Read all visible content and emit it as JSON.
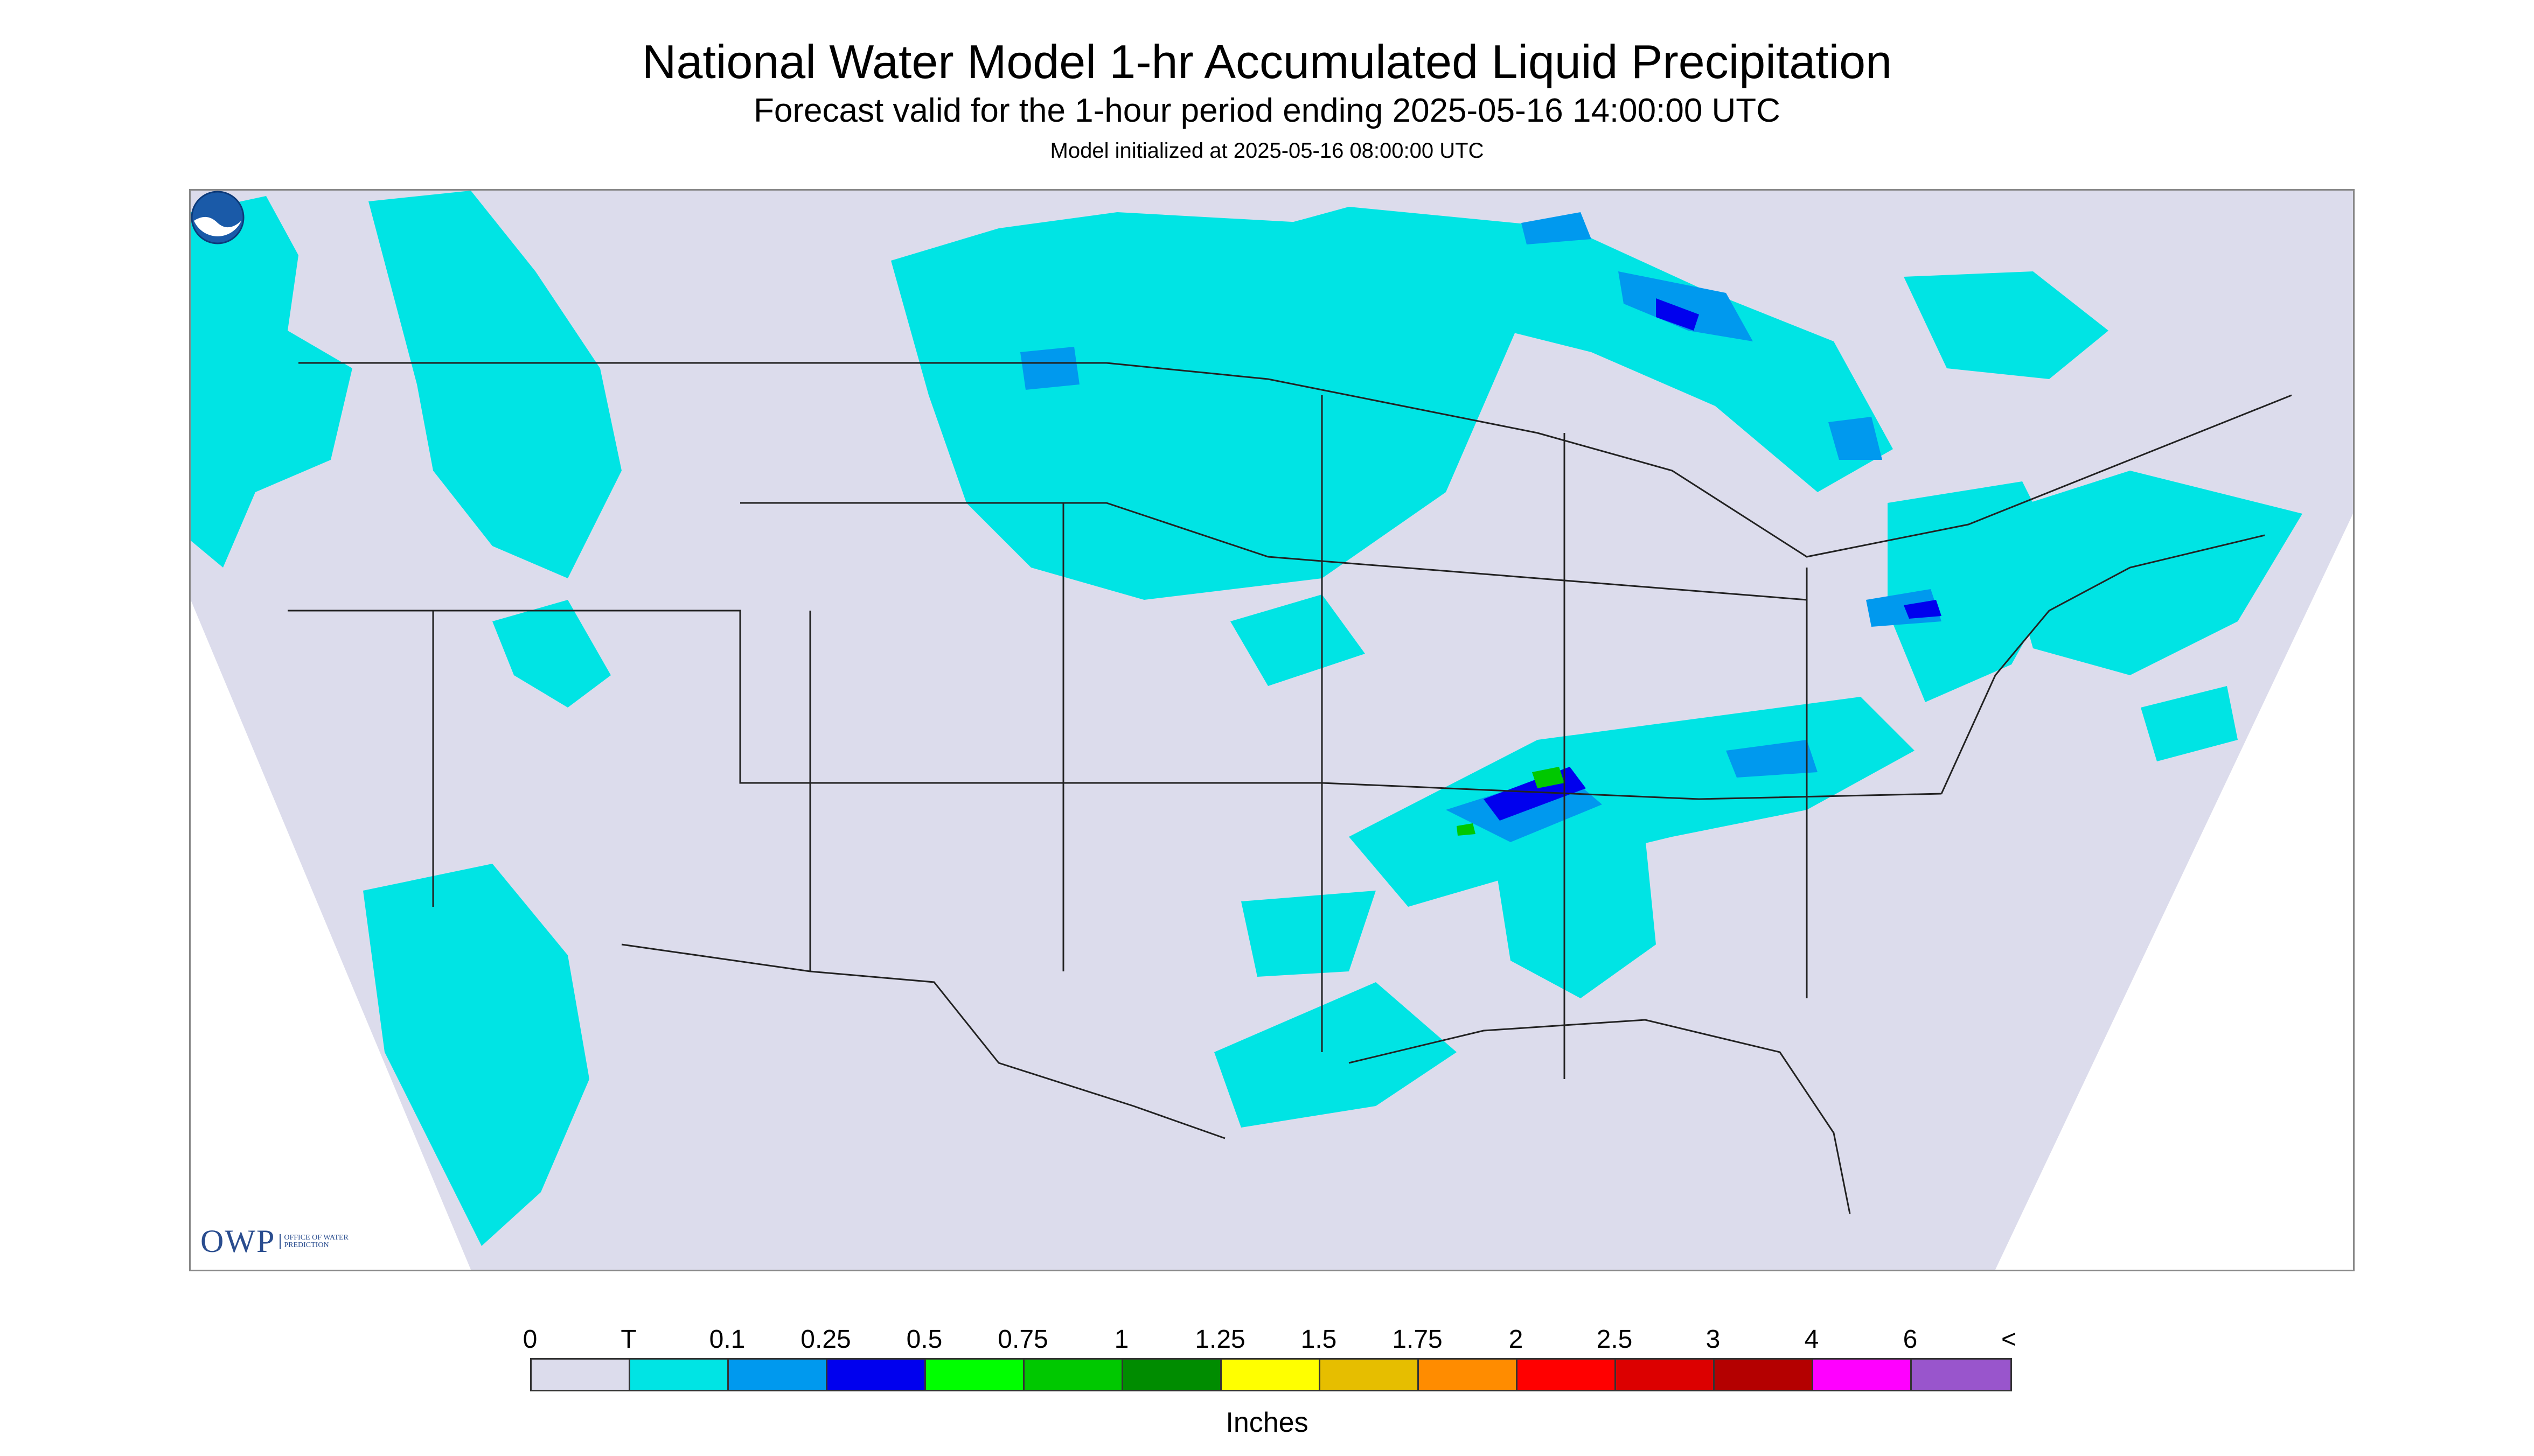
{
  "titles": {
    "main": "National Water Model 1-hr Accumulated Liquid Precipitation",
    "sub": "Forecast valid for the 1-hour period ending 2025-05-16 14:00:00 UTC",
    "init": "Model initialized at 2025-05-16 08:00:00 UTC"
  },
  "logos": {
    "owp_letters": "OWP",
    "owp_sub": "OFFICE OF WATER PREDICTION",
    "noaa": "NOAA"
  },
  "legend": {
    "labels": [
      "0",
      "T",
      "0.1",
      "0.25",
      "0.5",
      "0.75",
      "1",
      "1.25",
      "1.5",
      "1.75",
      "2",
      "2.5",
      "3",
      "4",
      "6",
      "<"
    ],
    "colors": [
      "#dcdcec",
      "#00e4e4",
      "#0099ee",
      "#0000ee",
      "#00ff00",
      "#00c800",
      "#008c00",
      "#ffff00",
      "#e6be00",
      "#ff8c00",
      "#ff0000",
      "#dc0000",
      "#b40000",
      "#ff00ff",
      "#9955cc"
    ],
    "units": "Inches"
  },
  "map_colors": {
    "background": "#dcdcec",
    "outside": "#ffffff",
    "trace": "#00e4e4",
    "light": "#0099ee",
    "moderate": "#0000ee",
    "heavy": "#00c800",
    "boundary": "#222222"
  }
}
